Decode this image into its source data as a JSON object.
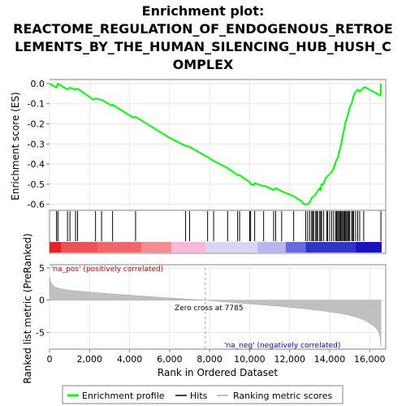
{
  "chart_data": {
    "type": "line",
    "title_lines": [
      "Enrichment plot:",
      "REACTOME_REGULATION_OF_ENDOGENOUS_RETROE",
      "LEMENTS_BY_THE_HUMAN_SILENCING_HUB_HUSH_C",
      "OMPLEX"
    ],
    "xlabel": "Rank in Ordered Dataset",
    "xlim": [
      0,
      16800
    ],
    "xticks": [
      0,
      2000,
      4000,
      6000,
      8000,
      10000,
      12000,
      14000,
      16000
    ],
    "xtick_labels": [
      "0",
      "2,000",
      "4,000",
      "6,000",
      "8,000",
      "10,000",
      "12,000",
      "14,000",
      "16,000"
    ],
    "es_panel": {
      "ylabel": "Enrichment score (ES)",
      "ylim": [
        -0.63,
        0.02
      ],
      "yticks": [
        0.0,
        -0.1,
        -0.2,
        -0.3,
        -0.4,
        -0.5,
        -0.6
      ],
      "ytick_labels": [
        "0.0",
        "-0.1",
        "-0.2",
        "-0.3",
        "-0.4",
        "-0.5",
        "-0.6"
      ],
      "grid": true,
      "color": "#00ff00",
      "series": [
        {
          "x": [
            0,
            350,
            420,
            900,
            1020,
            1300,
            1400,
            2200,
            2300,
            2600,
            3100,
            3150,
            4200,
            4300,
            6000,
            6800,
            6900,
            7000,
            7100,
            7800,
            7900,
            8200,
            8900,
            9400,
            9500,
            10000,
            10050,
            10200,
            10250,
            10700,
            10800,
            11200,
            11300,
            11600,
            12200,
            12600,
            12700,
            12800,
            12900,
            13000,
            13100,
            13200,
            13300,
            13400,
            13500,
            13550,
            13600,
            13700,
            13800,
            13900,
            14000,
            14100,
            14200,
            14300,
            14400,
            14450,
            14500,
            14550,
            14600,
            14650,
            14700,
            14750,
            14800,
            14900,
            14950,
            15000,
            15100,
            15150,
            15200,
            15300,
            15400,
            15500,
            15700,
            15800,
            16550,
            16560
          ],
          "y": [
            0.0,
            -0.02,
            0.0,
            -0.03,
            -0.02,
            -0.03,
            -0.025,
            -0.08,
            -0.075,
            -0.08,
            -0.11,
            -0.105,
            -0.17,
            -0.165,
            -0.27,
            -0.31,
            -0.31,
            -0.315,
            -0.32,
            -0.36,
            -0.365,
            -0.385,
            -0.42,
            -0.455,
            -0.455,
            -0.49,
            -0.5,
            -0.505,
            -0.495,
            -0.51,
            -0.51,
            -0.53,
            -0.52,
            -0.535,
            -0.56,
            -0.585,
            -0.6,
            -0.6,
            -0.6,
            -0.59,
            -0.57,
            -0.56,
            -0.55,
            -0.535,
            -0.52,
            -0.53,
            -0.5,
            -0.5,
            -0.47,
            -0.46,
            -0.45,
            -0.44,
            -0.42,
            -0.39,
            -0.37,
            -0.35,
            -0.33,
            -0.31,
            -0.29,
            -0.26,
            -0.24,
            -0.21,
            -0.19,
            -0.16,
            -0.14,
            -0.12,
            -0.1,
            -0.08,
            -0.06,
            -0.04,
            -0.03,
            -0.04,
            -0.02,
            -0.02,
            -0.06,
            0.0
          ]
        }
      ]
    },
    "hits": [
      350,
      420,
      900,
      1020,
      1300,
      1400,
      2300,
      2600,
      3150,
      4300,
      6800,
      7000,
      7900,
      8200,
      8900,
      9400,
      9500,
      10000,
      10050,
      10250,
      10700,
      11200,
      11300,
      11600,
      12200,
      12800,
      12900,
      13000,
      13100,
      13150,
      13200,
      13300,
      13350,
      13400,
      13500,
      13550,
      13600,
      13700,
      13850,
      13900,
      14000,
      14100,
      14200,
      14300,
      14350,
      14400,
      14450,
      14500,
      14550,
      14600,
      14650,
      14700,
      14750,
      14800,
      14850,
      14900,
      14950,
      15000,
      15100,
      15150,
      15200,
      15300,
      15400,
      15500,
      15700,
      16560
    ],
    "color_bar": [
      {
        "x0": 0,
        "x1": 600,
        "color": "#e8202a"
      },
      {
        "x0": 600,
        "x1": 2400,
        "color": "#f05054"
      },
      {
        "x0": 2400,
        "x1": 4600,
        "color": "#f2666a"
      },
      {
        "x0": 4600,
        "x1": 6100,
        "color": "#f58c90"
      },
      {
        "x0": 6100,
        "x1": 7800,
        "color": "#f8b8d8"
      },
      {
        "x0": 7800,
        "x1": 10400,
        "color": "#d8d4f4"
      },
      {
        "x0": 10400,
        "x1": 11800,
        "color": "#b8b4ee"
      },
      {
        "x0": 11800,
        "x1": 12800,
        "color": "#6a6ae0"
      },
      {
        "x0": 12800,
        "x1": 15300,
        "color": "#3232cc"
      },
      {
        "x0": 15300,
        "x1": 16600,
        "color": "#1a10c4"
      }
    ],
    "metric_panel": {
      "ylabel": "Ranked list metric (PreRanked)",
      "ylim": [
        -7.6,
        5.5
      ],
      "yticks": [
        5,
        0,
        -5
      ],
      "ytick_labels": [
        "5",
        "0",
        "-5"
      ],
      "zero_cross": 7785,
      "zero_cross_label": "Zero cross at 7785",
      "pos_label": "'na_pos' (positively correlated)",
      "neg_label": "'na_neg' (negatively correlated)",
      "fill_color": "#c0c0c0",
      "x": [
        0,
        50,
        150,
        300,
        600,
        1000,
        2000,
        3000,
        4000,
        5000,
        6000,
        7000,
        7785,
        8500,
        9500,
        10500,
        11500,
        12500,
        13500,
        14500,
        15000,
        15500,
        15800,
        16000,
        16200,
        16350,
        16450,
        16520,
        16560
      ],
      "y": [
        3.6,
        2.9,
        2.4,
        2.0,
        1.75,
        1.55,
        1.25,
        1.0,
        0.78,
        0.55,
        0.35,
        0.15,
        0.0,
        -0.2,
        -0.45,
        -0.7,
        -0.95,
        -1.25,
        -1.6,
        -2.05,
        -2.35,
        -2.8,
        -3.2,
        -3.6,
        -4.0,
        -4.5,
        -5.0,
        -5.8,
        -7.3
      ]
    },
    "legend": [
      {
        "label": "Enrichment profile",
        "color": "#00ff00",
        "kind": "line"
      },
      {
        "label": "Hits",
        "color": "#000000",
        "kind": "tick"
      },
      {
        "label": "Ranking metric scores",
        "color": "#c0c0c0",
        "kind": "line"
      }
    ]
  }
}
